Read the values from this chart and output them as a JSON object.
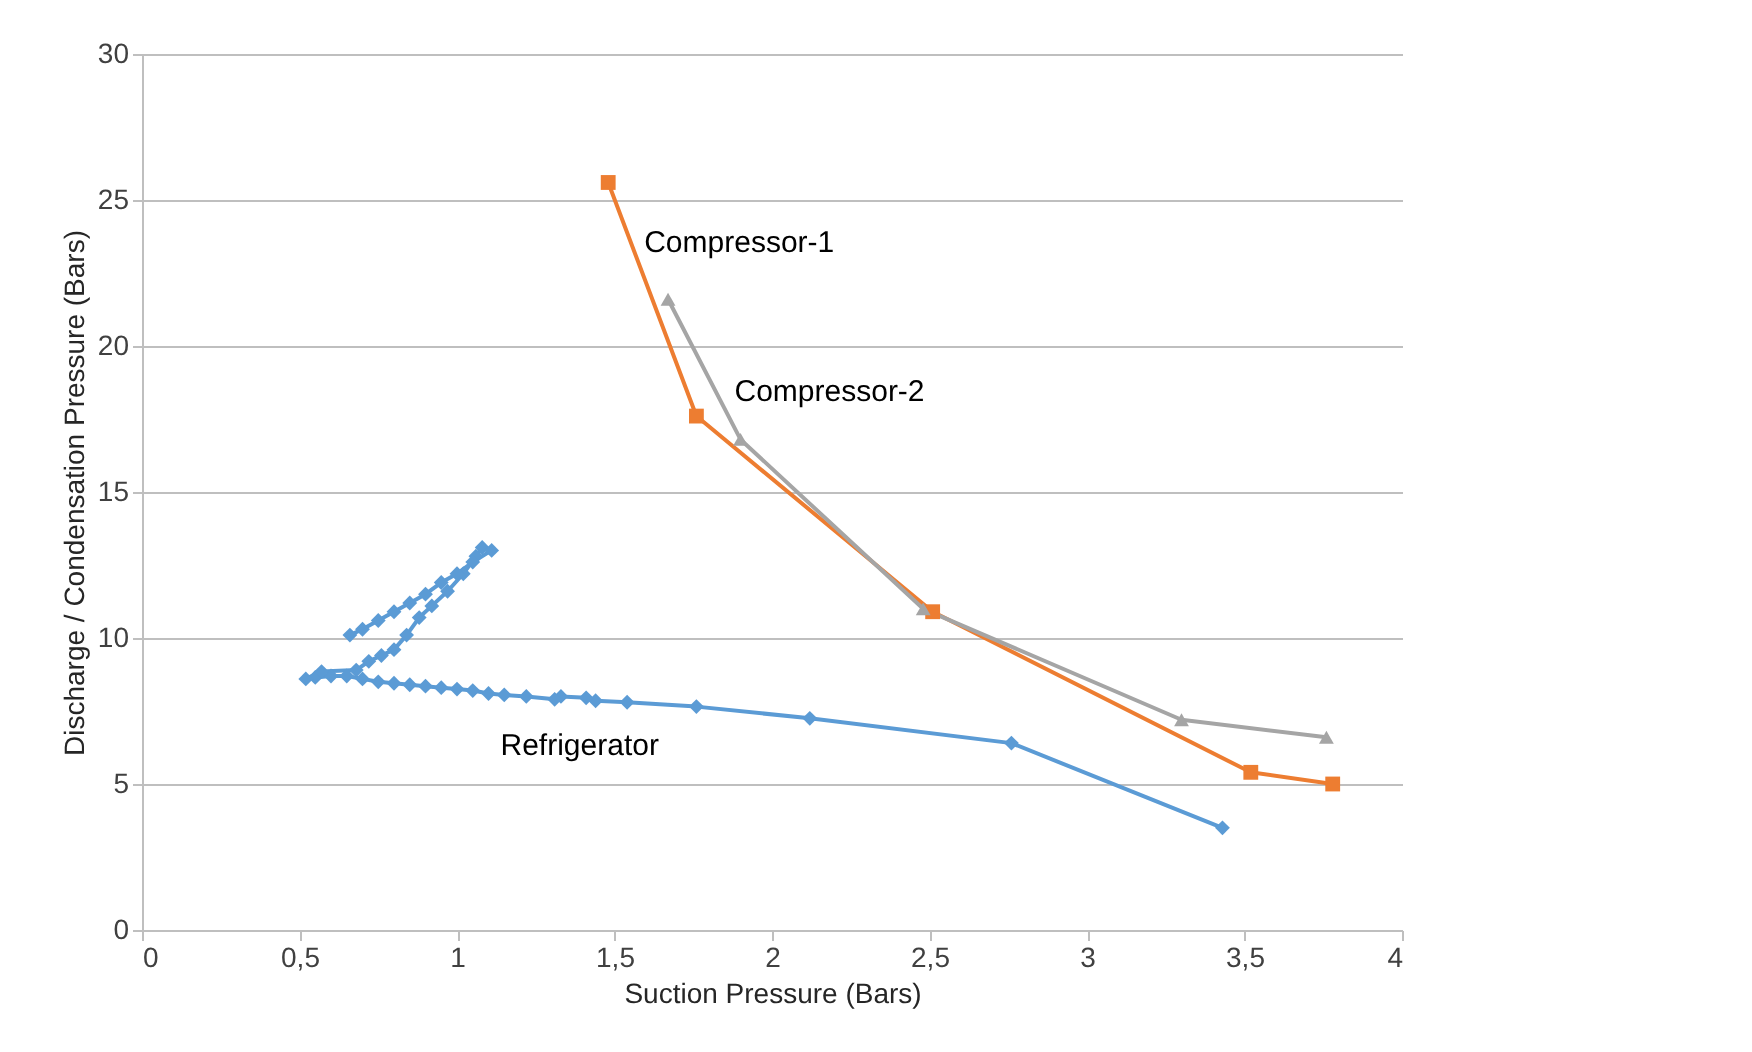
{
  "chart_data": {
    "type": "line",
    "xlabel": "Suction Pressure (Bars)",
    "ylabel": "Discharge / Condensation Pressure (Bars)",
    "xlim": [
      0,
      4
    ],
    "xticks": [
      0,
      {
        "value": 0.5,
        "label": "0,5"
      },
      1,
      {
        "value": 1.5,
        "label": "1,5"
      },
      2,
      {
        "value": 2.5,
        "label": "2,5"
      },
      3,
      {
        "value": 3.5,
        "label": "3,5"
      },
      4
    ],
    "ylim": [
      0,
      30
    ],
    "yticks": [
      0,
      5,
      10,
      15,
      20,
      25,
      30
    ],
    "grid": "y",
    "line_style": "solid",
    "series": [
      {
        "name": "Refrigerator",
        "color": "#5b9bd5",
        "marker": "diamond",
        "x": [
          3.43,
          2.76,
          2.12,
          1.76,
          1.54,
          1.44,
          1.41,
          1.33,
          1.31,
          1.22,
          1.15,
          1.1,
          1.05,
          1.0,
          0.95,
          0.9,
          0.85,
          0.8,
          0.75,
          0.7,
          0.65,
          0.6,
          0.55,
          0.52,
          0.57,
          0.68,
          0.72,
          0.76,
          0.8,
          0.84,
          0.88,
          0.92,
          0.97,
          1.02,
          1.06,
          1.08,
          1.11,
          1.05,
          1.0,
          0.95,
          0.9,
          0.85,
          0.8,
          0.75,
          0.7,
          0.66
        ],
        "values": [
          3.5,
          6.4,
          7.25,
          7.65,
          7.8,
          7.85,
          7.95,
          8.0,
          7.9,
          8.0,
          8.05,
          8.1,
          8.2,
          8.25,
          8.3,
          8.35,
          8.4,
          8.45,
          8.5,
          8.6,
          8.7,
          8.7,
          8.65,
          8.6,
          8.85,
          8.9,
          9.2,
          9.4,
          9.6,
          10.1,
          10.7,
          11.1,
          11.6,
          12.2,
          12.8,
          13.1,
          13.0,
          12.6,
          12.2,
          11.9,
          11.5,
          11.2,
          10.9,
          10.6,
          10.3,
          10.1
        ]
      },
      {
        "name": "Compressor-1",
        "color": "#ed7d31",
        "marker": "square",
        "x": [
          1.48,
          1.76,
          2.51,
          3.52,
          3.78
        ],
        "values": [
          25.6,
          17.6,
          10.9,
          5.4,
          5.0
        ]
      },
      {
        "name": "Compressor-2",
        "color": "#a5a5a5",
        "marker": "triangle",
        "x": [
          1.67,
          1.9,
          2.48,
          3.3,
          3.76
        ],
        "values": [
          21.6,
          16.8,
          11.0,
          7.2,
          6.6
        ]
      }
    ]
  }
}
